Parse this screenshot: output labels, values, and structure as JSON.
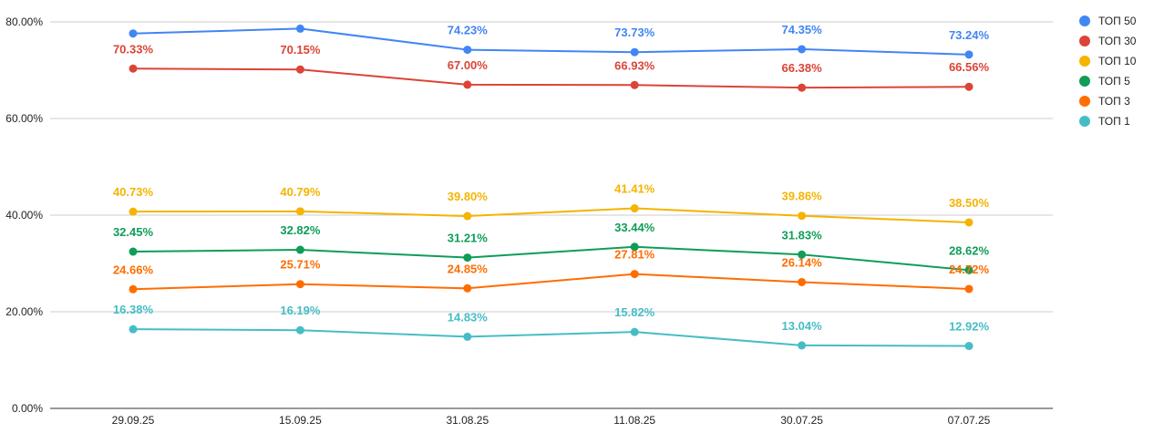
{
  "chart_data": {
    "type": "line",
    "title": "",
    "xlabel": "",
    "ylabel": "",
    "categories": [
      "29.09.25",
      "15.09.25",
      "31.08.25",
      "11.08.25",
      "30.07.25",
      "07.07.25"
    ],
    "ylim": [
      0,
      80
    ],
    "yticks": [
      "0.00%",
      "20.00%",
      "40.00%",
      "60.00%",
      "80.00%"
    ],
    "grid": true,
    "legend_position": "right",
    "series": [
      {
        "name": "ТОП 50",
        "color": "#4285f4",
        "values": [
          77.6,
          78.6,
          74.23,
          73.73,
          74.35,
          73.24
        ],
        "labels": [
          "",
          "",
          "74.23%",
          "73.73%",
          "74.35%",
          "73.24%"
        ]
      },
      {
        "name": "ТОП 30",
        "color": "#db4437",
        "values": [
          70.33,
          70.15,
          67.0,
          66.93,
          66.38,
          66.56
        ],
        "labels": [
          "70.33%",
          "70.15%",
          "67.00%",
          "66.93%",
          "66.38%",
          "66.56%"
        ]
      },
      {
        "name": "ТОП 10",
        "color": "#f4b400",
        "values": [
          40.73,
          40.79,
          39.8,
          41.41,
          39.86,
          38.5
        ],
        "labels": [
          "40.73%",
          "40.79%",
          "39.80%",
          "41.41%",
          "39.86%",
          "38.50%"
        ]
      },
      {
        "name": "ТОП 5",
        "color": "#0f9d58",
        "values": [
          32.45,
          32.82,
          31.21,
          33.44,
          31.83,
          28.62
        ],
        "labels": [
          "32.45%",
          "32.82%",
          "31.21%",
          "33.44%",
          "31.83%",
          "28.62%"
        ]
      },
      {
        "name": "ТОП 3",
        "color": "#ff6d01",
        "values": [
          24.66,
          25.71,
          24.85,
          27.81,
          26.14,
          24.72
        ],
        "labels": [
          "24.66%",
          "25.71%",
          "24.85%",
          "27.81%",
          "26.14%",
          "24.72%"
        ]
      },
      {
        "name": "ТОП 1",
        "color": "#46bdc6",
        "values": [
          16.38,
          16.19,
          14.83,
          15.82,
          13.04,
          12.92
        ],
        "labels": [
          "16.38%",
          "16.19%",
          "14.83%",
          "15.82%",
          "13.04%",
          "12.92%"
        ]
      }
    ]
  }
}
